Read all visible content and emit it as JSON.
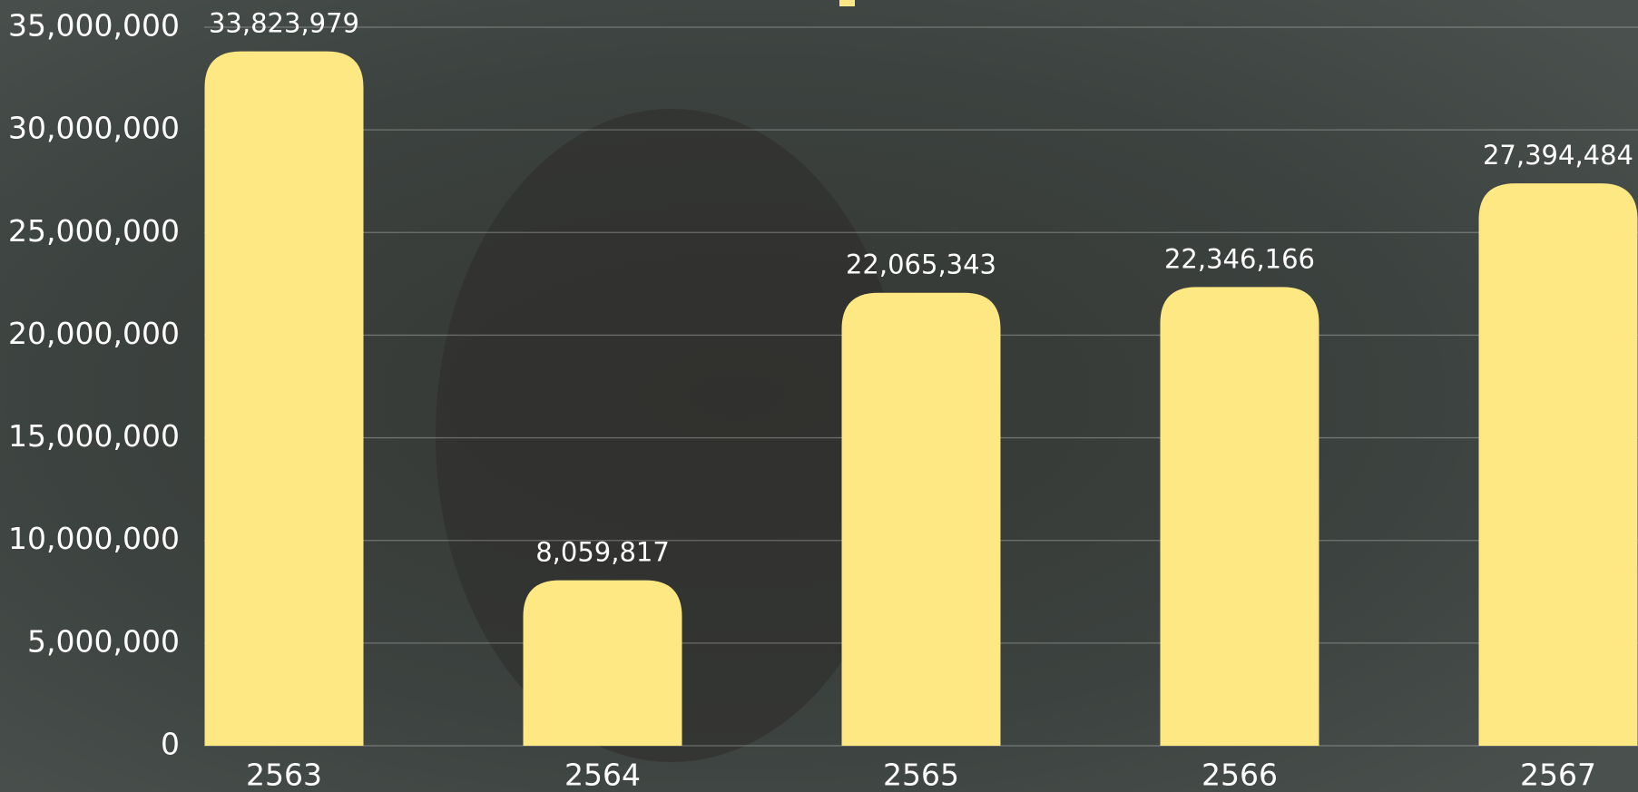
{
  "chart_data": {
    "type": "bar",
    "categories": [
      "2563",
      "2564",
      "2565",
      "2566",
      "2567"
    ],
    "values": [
      33823979,
      8059817,
      22065343,
      22346166,
      27394484
    ],
    "value_labels": [
      "33,823,979",
      "8,059,817",
      "22,065,343",
      "22,346,166",
      "27,394,484"
    ],
    "color": "#fde883",
    "ylim": [
      0,
      35000000
    ],
    "yticks": [
      0,
      {
        "value": 5000000,
        "label": "5,000,000"
      },
      {
        "value": 10000000,
        "label": "10,000,000"
      },
      {
        "value": 15000000,
        "label": "15,000,000"
      },
      {
        "value": 20000000,
        "label": "20,000,000"
      },
      {
        "value": 25000000,
        "label": "25,000,000"
      },
      {
        "value": 30000000,
        "label": "30,000,000"
      },
      {
        "value": 35000000,
        "label": "35,000,000"
      }
    ],
    "grid": true
  }
}
